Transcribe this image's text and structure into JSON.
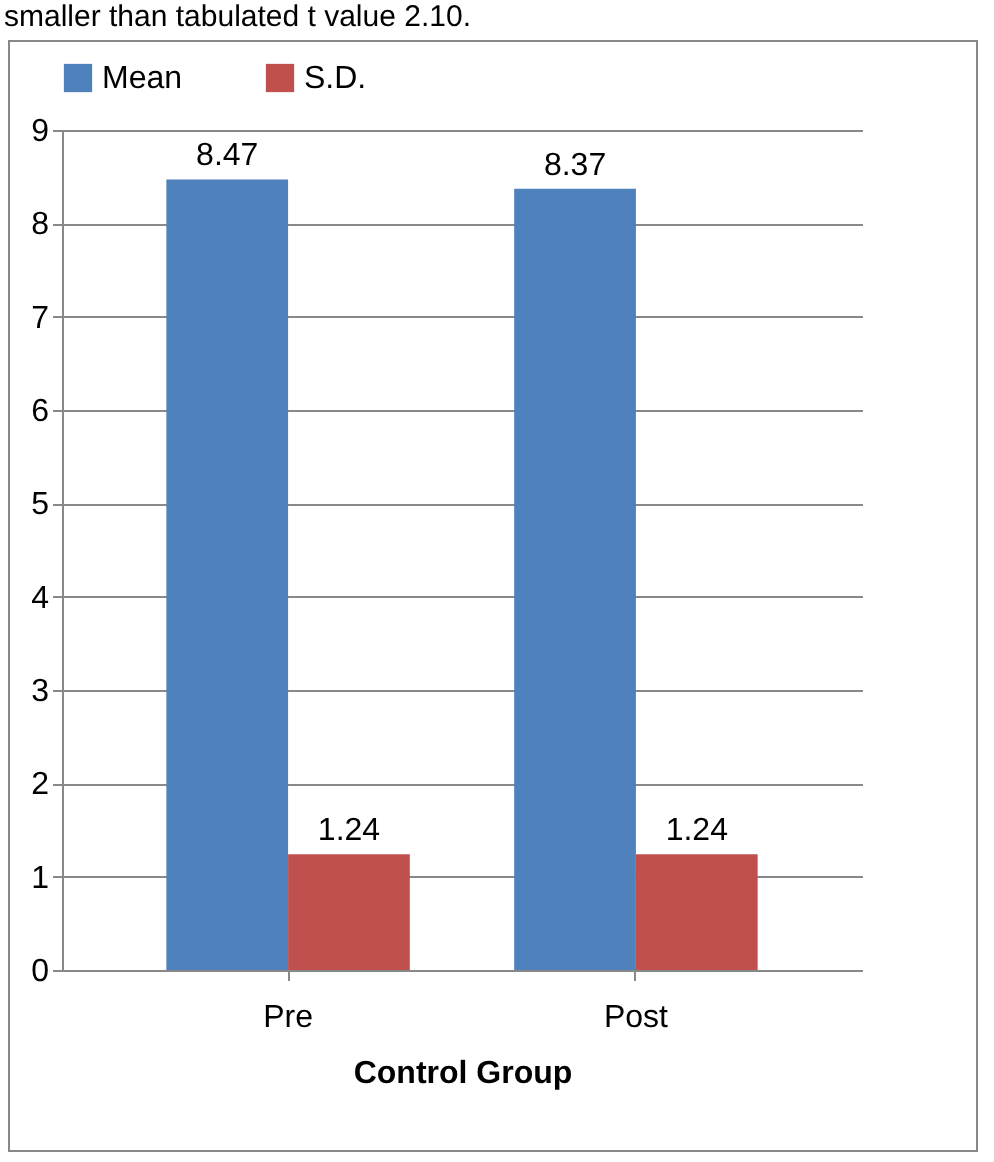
{
  "chart_data": {
    "type": "bar",
    "xlabel": "Control Group",
    "categories": [
      "Pre",
      "Post"
    ],
    "series": [
      {
        "name": "Mean",
        "color": "#4f81bd",
        "values": [
          8.47,
          8.37
        ]
      },
      {
        "name": "S.D.",
        "color": "#c0504d",
        "values": [
          1.24,
          1.24
        ]
      }
    ],
    "ylim": [
      0,
      9
    ],
    "yticks": [
      0,
      1,
      2,
      3,
      4,
      5,
      6,
      7,
      8,
      9
    ],
    "grid": "y",
    "legend": "top",
    "data_labels": true,
    "annotations": [
      "smaller than tabulated t value 2.10."
    ]
  }
}
